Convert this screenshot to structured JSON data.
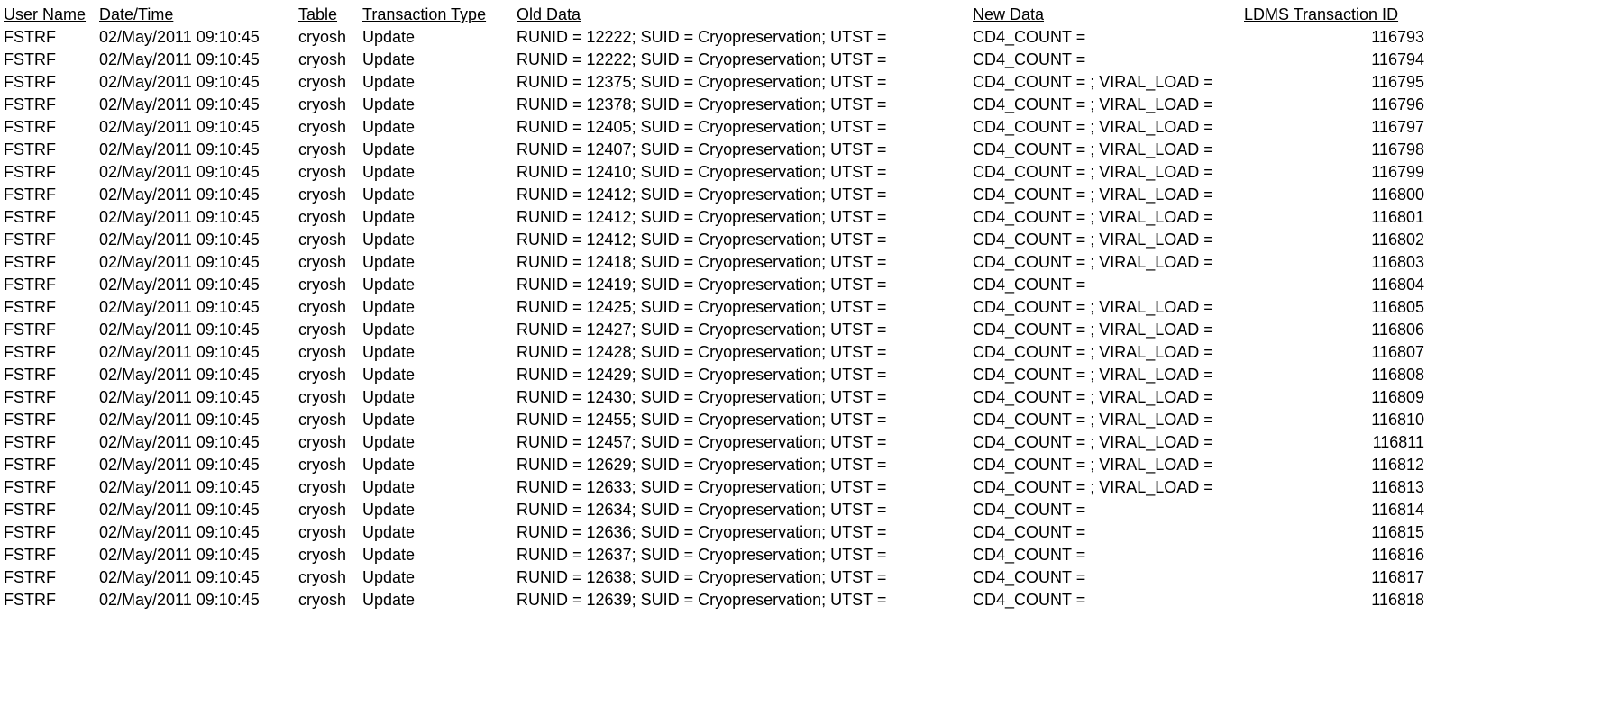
{
  "table": {
    "columns": [
      "User Name",
      "Date/Time",
      "Table",
      "Transaction Type",
      "Old Data",
      "New Data",
      "LDMS Transaction ID"
    ],
    "rows": [
      [
        "FSTRF",
        "02/May/2011 09:10:45",
        "cryosh",
        "Update",
        "RUNID = 12222; SUID = Cryopreservation; UTST =",
        "CD4_COUNT =",
        "116793"
      ],
      [
        "FSTRF",
        "02/May/2011 09:10:45",
        "cryosh",
        "Update",
        "RUNID = 12222; SUID = Cryopreservation; UTST =",
        "CD4_COUNT =",
        "116794"
      ],
      [
        "FSTRF",
        "02/May/2011 09:10:45",
        "cryosh",
        "Update",
        "RUNID = 12375; SUID = Cryopreservation; UTST =",
        "CD4_COUNT = ; VIRAL_LOAD =",
        "116795"
      ],
      [
        "FSTRF",
        "02/May/2011 09:10:45",
        "cryosh",
        "Update",
        "RUNID = 12378; SUID = Cryopreservation; UTST =",
        "CD4_COUNT = ; VIRAL_LOAD =",
        "116796"
      ],
      [
        "FSTRF",
        "02/May/2011 09:10:45",
        "cryosh",
        "Update",
        "RUNID = 12405; SUID = Cryopreservation; UTST =",
        "CD4_COUNT = ; VIRAL_LOAD =",
        "116797"
      ],
      [
        "FSTRF",
        "02/May/2011 09:10:45",
        "cryosh",
        "Update",
        "RUNID = 12407; SUID = Cryopreservation; UTST =",
        "CD4_COUNT = ; VIRAL_LOAD =",
        "116798"
      ],
      [
        "FSTRF",
        "02/May/2011 09:10:45",
        "cryosh",
        "Update",
        "RUNID = 12410; SUID = Cryopreservation; UTST =",
        "CD4_COUNT = ; VIRAL_LOAD =",
        "116799"
      ],
      [
        "FSTRF",
        "02/May/2011 09:10:45",
        "cryosh",
        "Update",
        "RUNID = 12412; SUID = Cryopreservation; UTST =",
        "CD4_COUNT = ; VIRAL_LOAD =",
        "116800"
      ],
      [
        "FSTRF",
        "02/May/2011 09:10:45",
        "cryosh",
        "Update",
        "RUNID = 12412; SUID = Cryopreservation; UTST =",
        "CD4_COUNT = ; VIRAL_LOAD =",
        "116801"
      ],
      [
        "FSTRF",
        "02/May/2011 09:10:45",
        "cryosh",
        "Update",
        "RUNID = 12412; SUID = Cryopreservation; UTST =",
        "CD4_COUNT = ; VIRAL_LOAD =",
        "116802"
      ],
      [
        "FSTRF",
        "02/May/2011 09:10:45",
        "cryosh",
        "Update",
        "RUNID = 12418; SUID = Cryopreservation; UTST =",
        "CD4_COUNT = ; VIRAL_LOAD =",
        "116803"
      ],
      [
        "FSTRF",
        "02/May/2011 09:10:45",
        "cryosh",
        "Update",
        "RUNID = 12419; SUID = Cryopreservation; UTST =",
        "CD4_COUNT =",
        "116804"
      ],
      [
        "FSTRF",
        "02/May/2011 09:10:45",
        "cryosh",
        "Update",
        "RUNID = 12425; SUID = Cryopreservation; UTST =",
        "CD4_COUNT = ; VIRAL_LOAD =",
        "116805"
      ],
      [
        "FSTRF",
        "02/May/2011 09:10:45",
        "cryosh",
        "Update",
        "RUNID = 12427; SUID = Cryopreservation; UTST =",
        "CD4_COUNT = ; VIRAL_LOAD =",
        "116806"
      ],
      [
        "FSTRF",
        "02/May/2011 09:10:45",
        "cryosh",
        "Update",
        "RUNID = 12428; SUID = Cryopreservation; UTST =",
        "CD4_COUNT = ; VIRAL_LOAD =",
        "116807"
      ],
      [
        "FSTRF",
        "02/May/2011 09:10:45",
        "cryosh",
        "Update",
        "RUNID = 12429; SUID = Cryopreservation; UTST =",
        "CD4_COUNT = ; VIRAL_LOAD =",
        "116808"
      ],
      [
        "FSTRF",
        "02/May/2011 09:10:45",
        "cryosh",
        "Update",
        "RUNID = 12430; SUID = Cryopreservation; UTST =",
        "CD4_COUNT = ; VIRAL_LOAD =",
        "116809"
      ],
      [
        "FSTRF",
        "02/May/2011 09:10:45",
        "cryosh",
        "Update",
        "RUNID = 12455; SUID = Cryopreservation; UTST =",
        "CD4_COUNT = ; VIRAL_LOAD =",
        "116810"
      ],
      [
        "FSTRF",
        "02/May/2011 09:10:45",
        "cryosh",
        "Update",
        "RUNID = 12457; SUID = Cryopreservation; UTST =",
        "CD4_COUNT = ; VIRAL_LOAD =",
        "116811"
      ],
      [
        "FSTRF",
        "02/May/2011 09:10:45",
        "cryosh",
        "Update",
        "RUNID = 12629; SUID = Cryopreservation; UTST =",
        "CD4_COUNT = ; VIRAL_LOAD =",
        "116812"
      ],
      [
        "FSTRF",
        "02/May/2011 09:10:45",
        "cryosh",
        "Update",
        "RUNID = 12633; SUID = Cryopreservation; UTST =",
        "CD4_COUNT = ; VIRAL_LOAD =",
        "116813"
      ],
      [
        "FSTRF",
        "02/May/2011 09:10:45",
        "cryosh",
        "Update",
        "RUNID = 12634; SUID = Cryopreservation; UTST =",
        "CD4_COUNT =",
        "116814"
      ],
      [
        "FSTRF",
        "02/May/2011 09:10:45",
        "cryosh",
        "Update",
        "RUNID = 12636; SUID = Cryopreservation; UTST =",
        "CD4_COUNT =",
        "116815"
      ],
      [
        "FSTRF",
        "02/May/2011 09:10:45",
        "cryosh",
        "Update",
        "RUNID = 12637; SUID = Cryopreservation; UTST =",
        "CD4_COUNT =",
        "116816"
      ],
      [
        "FSTRF",
        "02/May/2011 09:10:45",
        "cryosh",
        "Update",
        "RUNID = 12638; SUID = Cryopreservation; UTST =",
        "CD4_COUNT =",
        "116817"
      ],
      [
        "FSTRF",
        "02/May/2011 09:10:45",
        "cryosh",
        "Update",
        "RUNID = 12639; SUID = Cryopreservation; UTST =",
        "CD4_COUNT =",
        "116818"
      ]
    ],
    "background_color": "#ffffff",
    "text_color": "#000000",
    "font_family": "Arial",
    "font_size": 18
  }
}
